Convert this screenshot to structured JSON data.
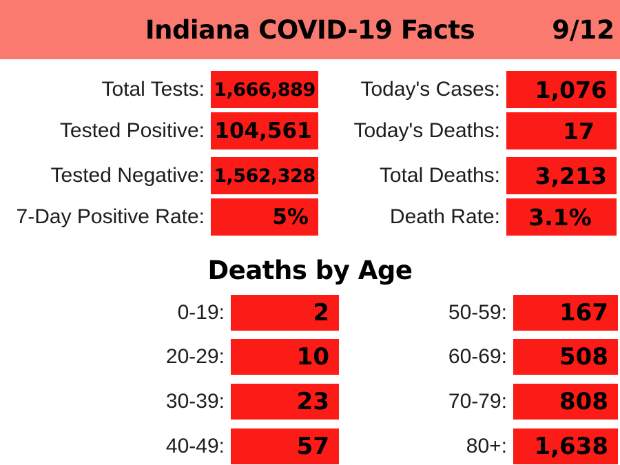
{
  "header": {
    "title": "Indiana COVID-19 Facts",
    "date": "9/12"
  },
  "colors": {
    "header_salmon": "#fb7a70",
    "box_red": "#fc1c17",
    "text_black": "#000000"
  },
  "stats": {
    "left": [
      {
        "label": "Total Tests:",
        "value": "1,666,889"
      },
      {
        "label": "Tested Positive:",
        "value": "104,561"
      },
      {
        "label": "Tested Negative:",
        "value": "1,562,328"
      },
      {
        "label": "7-Day Positive Rate:",
        "value": "5%"
      }
    ],
    "right": [
      {
        "label": "Today's Cases:",
        "value": "1,076"
      },
      {
        "label": "Today's Deaths:",
        "value": "17"
      },
      {
        "label": "Total Deaths:",
        "value": "3,213"
      },
      {
        "label": "Death Rate:",
        "value": "3.1%"
      }
    ]
  },
  "deaths_by_age": {
    "title": "Deaths by Age",
    "left": [
      {
        "label": "0-19:",
        "value": "2"
      },
      {
        "label": "20-29:",
        "value": "10"
      },
      {
        "label": "30-39:",
        "value": "23"
      },
      {
        "label": "40-49:",
        "value": "57"
      }
    ],
    "right": [
      {
        "label": "50-59:",
        "value": "167"
      },
      {
        "label": "60-69:",
        "value": "508"
      },
      {
        "label": "70-79:",
        "value": "808"
      },
      {
        "label": "80+:",
        "value": "1,638"
      }
    ]
  }
}
